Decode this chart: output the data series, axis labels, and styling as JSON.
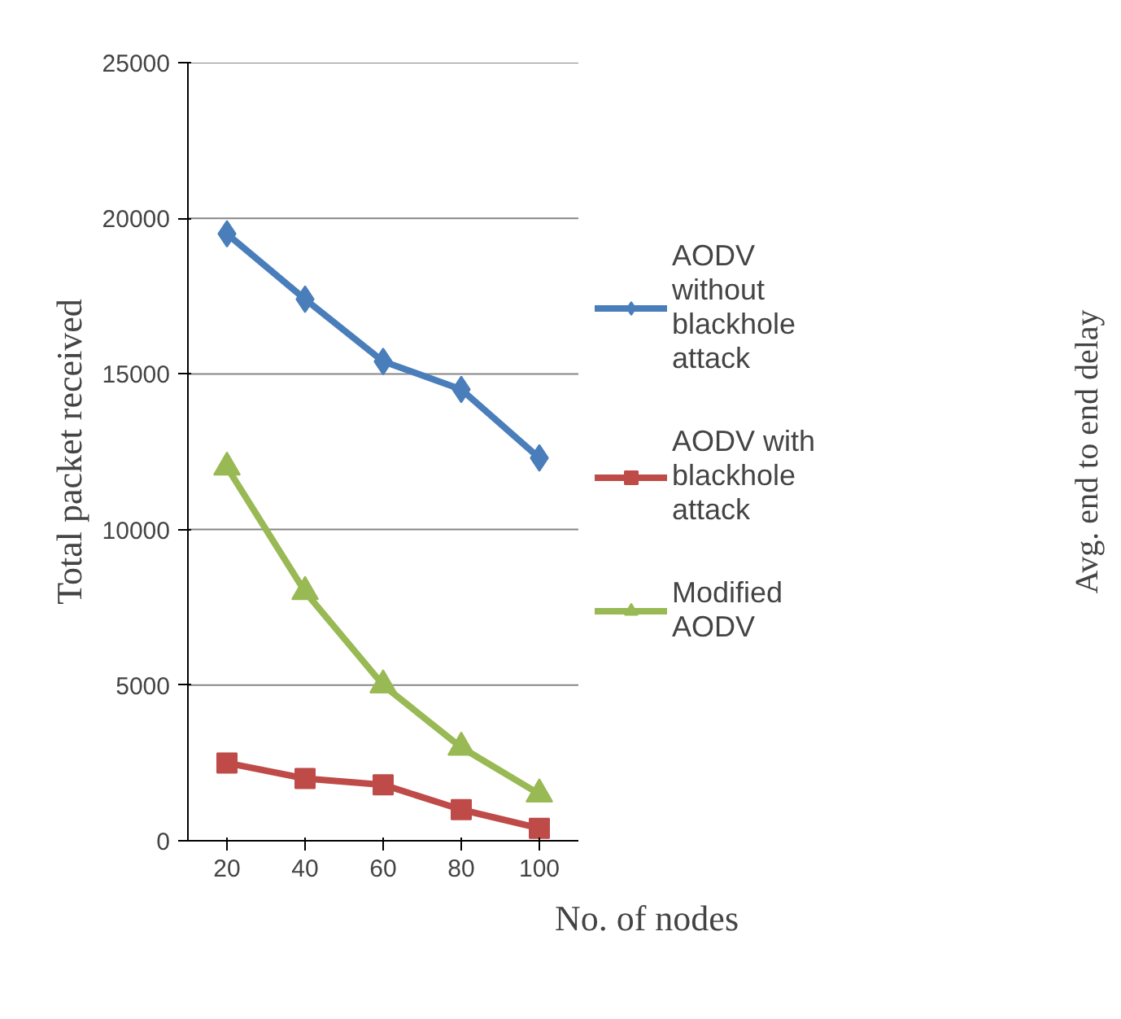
{
  "chart_data": {
    "type": "line",
    "xlabel": "No. of nodes",
    "ylabel": "Total packet received",
    "categories": [
      "20",
      "40",
      "60",
      "80",
      "100"
    ],
    "series": [
      {
        "name": "AODV without blackhole attack",
        "color": "#4a7ebb",
        "marker": "diamond",
        "values": [
          19500,
          17400,
          15400,
          14500,
          12300
        ]
      },
      {
        "name": "AODV with blackhole attack",
        "color": "#be4b48",
        "marker": "square",
        "values": [
          2500,
          2000,
          1800,
          1000,
          400
        ]
      },
      {
        "name": "Modified AODV",
        "color": "#98b954",
        "marker": "triangle",
        "values": [
          12000,
          8000,
          5000,
          3000,
          1500
        ]
      }
    ],
    "ylim": [
      0,
      25000
    ],
    "yticks": [
      0,
      5000,
      10000,
      15000,
      20000,
      25000
    ],
    "grid": "y",
    "legend": "right",
    "annotations": [
      "Avg. end to end delay"
    ]
  }
}
